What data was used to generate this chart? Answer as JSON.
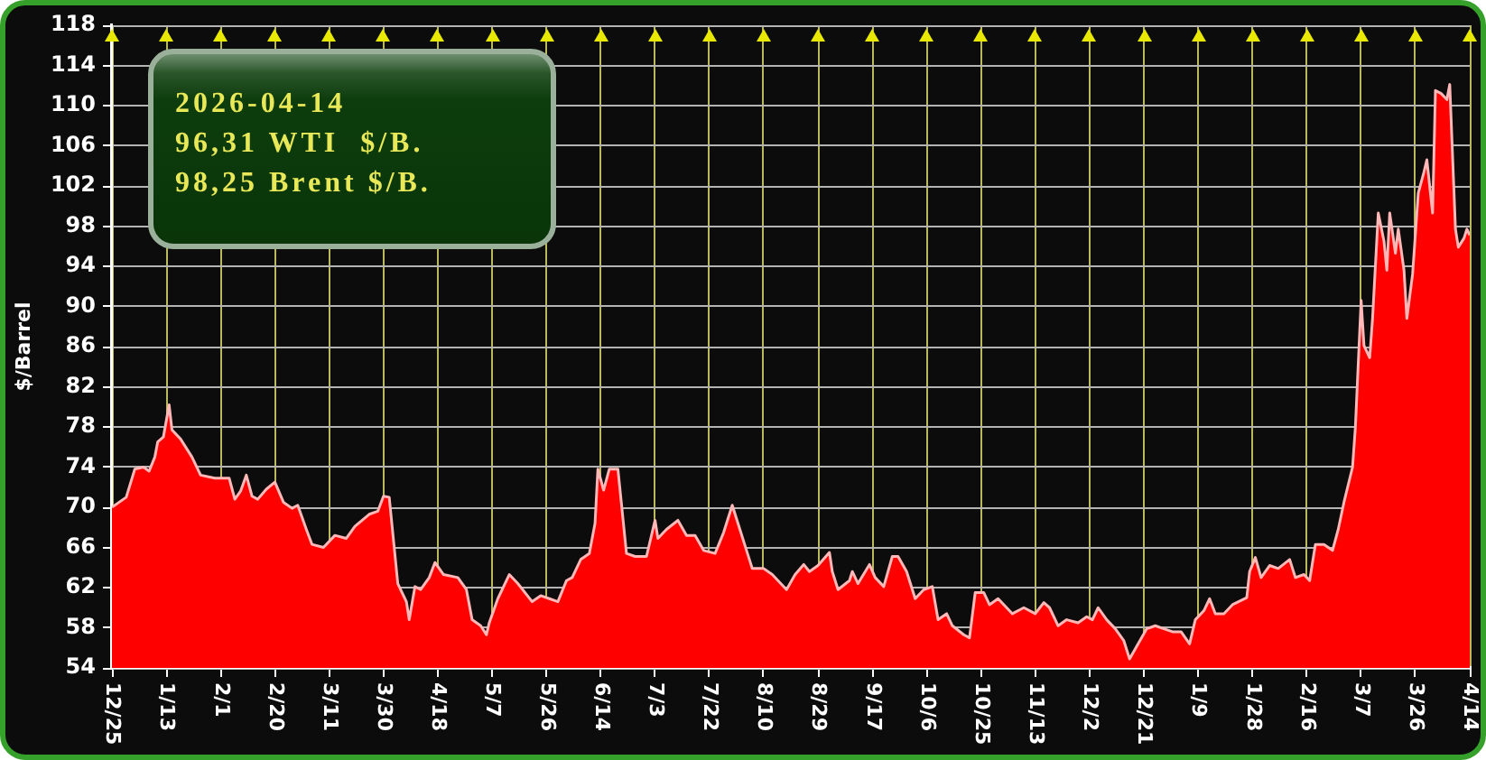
{
  "chart_data": {
    "type": "area",
    "ylabel": "$/Barrel",
    "annotations": [
      "2026-04-14",
      "96,31 WTI  $/B.",
      "98,25 Brent $/B."
    ],
    "x": [
      "2024-12-25",
      "2024-12-30",
      "2025-01-02",
      "2025-01-05",
      "2025-01-07",
      "2025-01-09",
      "2025-01-10",
      "2025-01-12",
      "2025-01-14",
      "2025-01-15",
      "2025-01-18",
      "2025-01-22",
      "2025-01-25",
      "2025-01-30",
      "2025-02-04",
      "2025-02-06",
      "2025-02-08",
      "2025-02-10",
      "2025-02-12",
      "2025-02-14",
      "2025-02-17",
      "2025-02-20",
      "2025-02-23",
      "2025-02-26",
      "2025-02-28",
      "2025-03-03",
      "2025-03-05",
      "2025-03-09",
      "2025-03-13",
      "2025-03-17",
      "2025-03-20",
      "2025-03-25",
      "2025-03-28",
      "2025-03-30",
      "2025-04-01",
      "2025-04-04",
      "2025-04-07",
      "2025-04-08",
      "2025-04-10",
      "2025-04-12",
      "2025-04-15",
      "2025-04-17",
      "2025-04-20",
      "2025-04-25",
      "2025-04-28",
      "2025-04-30",
      "2025-05-03",
      "2025-05-05",
      "2025-05-06",
      "2025-05-09",
      "2025-05-13",
      "2025-05-16",
      "2025-05-21",
      "2025-05-24",
      "2025-05-27",
      "2025-05-30",
      "2025-06-02",
      "2025-06-04",
      "2025-06-07",
      "2025-06-10",
      "2025-06-12",
      "2025-06-13",
      "2025-06-15",
      "2025-06-17",
      "2025-06-20",
      "2025-06-23",
      "2025-06-26",
      "2025-06-30",
      "2025-07-03",
      "2025-07-04",
      "2025-07-07",
      "2025-07-11",
      "2025-07-14",
      "2025-07-17",
      "2025-07-20",
      "2025-07-24",
      "2025-07-27",
      "2025-07-30",
      "2025-08-01",
      "2025-08-04",
      "2025-08-06",
      "2025-08-10",
      "2025-08-13",
      "2025-08-15",
      "2025-08-18",
      "2025-08-21",
      "2025-08-24",
      "2025-08-26",
      "2025-08-29",
      "2025-09-02",
      "2025-09-03",
      "2025-09-05",
      "2025-09-09",
      "2025-09-10",
      "2025-09-12",
      "2025-09-16",
      "2025-09-18",
      "2025-09-21",
      "2025-09-24",
      "2025-09-26",
      "2025-09-29",
      "2025-10-02",
      "2025-10-05",
      "2025-10-08",
      "2025-10-10",
      "2025-10-13",
      "2025-10-15",
      "2025-10-19",
      "2025-10-21",
      "2025-10-23",
      "2025-10-26",
      "2025-10-28",
      "2025-10-31",
      "2025-11-05",
      "2025-11-09",
      "2025-11-13",
      "2025-11-16",
      "2025-11-18",
      "2025-11-21",
      "2025-11-24",
      "2025-11-28",
      "2025-12-01",
      "2025-12-03",
      "2025-12-05",
      "2025-12-08",
      "2025-12-11",
      "2025-12-14",
      "2025-12-16",
      "2025-12-19",
      "2025-12-22",
      "2025-12-25",
      "2025-12-28",
      "2025-12-31",
      "2026-01-03",
      "2026-01-06",
      "2026-01-08",
      "2026-01-11",
      "2026-01-13",
      "2026-01-15",
      "2026-01-18",
      "2026-01-21",
      "2026-01-26",
      "2026-01-27",
      "2026-01-29",
      "2026-01-31",
      "2026-02-03",
      "2026-02-06",
      "2026-02-10",
      "2026-02-12",
      "2026-02-15",
      "2026-02-17",
      "2026-02-19",
      "2026-02-22",
      "2026-02-25",
      "2026-02-27",
      "2026-03-01",
      "2026-03-04",
      "2026-03-05",
      "2026-03-07",
      "2026-03-08",
      "2026-03-10",
      "2026-03-11",
      "2026-03-13",
      "2026-03-15",
      "2026-03-16",
      "2026-03-17",
      "2026-03-19",
      "2026-03-20",
      "2026-03-22",
      "2026-03-23",
      "2026-03-25",
      "2026-03-27",
      "2026-03-29",
      "2026-03-30",
      "2026-04-01",
      "2026-04-02",
      "2026-04-04",
      "2026-04-06",
      "2026-04-07",
      "2026-04-09",
      "2026-04-10",
      "2026-04-12",
      "2026-04-13",
      "2026-04-14"
    ],
    "values": [
      70,
      71,
      73.8,
      74,
      73.6,
      75,
      76.5,
      77,
      80.2,
      77.7,
      76.8,
      75,
      73.2,
      72.9,
      72.9,
      70.8,
      71.6,
      73.2,
      71.1,
      70.8,
      71.8,
      72.5,
      70.5,
      69.9,
      70.2,
      67.8,
      66.3,
      66,
      67.2,
      66.9,
      68.1,
      69.3,
      69.6,
      71.1,
      71,
      62.4,
      60.6,
      58.8,
      62.1,
      61.8,
      63,
      64.5,
      63.3,
      63,
      61.8,
      58.8,
      58.2,
      57.3,
      58.5,
      60.9,
      63.3,
      62.4,
      60.6,
      61.2,
      60.9,
      60.6,
      62.7,
      63,
      64.8,
      65.4,
      68.4,
      73.8,
      71.7,
      73.8,
      73.8,
      65.4,
      65.1,
      65.1,
      68.7,
      66.9,
      67.8,
      68.7,
      67.2,
      67.2,
      65.7,
      65.4,
      67.5,
      70.2,
      68.4,
      65.7,
      63.9,
      63.9,
      63.3,
      62.7,
      61.8,
      63.3,
      64.3,
      63.6,
      64.2,
      65.5,
      63.6,
      61.8,
      62.7,
      63.6,
      62.4,
      64.3,
      63,
      62.1,
      65.1,
      65.1,
      63.6,
      60.9,
      61.8,
      62.1,
      58.8,
      59.4,
      58.2,
      57.3,
      57,
      61.5,
      61.5,
      60.3,
      60.9,
      59.4,
      60,
      59.4,
      60.5,
      60,
      58.2,
      58.8,
      58.5,
      59.1,
      58.8,
      60,
      58.8,
      57.9,
      56.7,
      54.9,
      56.4,
      57.9,
      58.2,
      57.9,
      57.6,
      57.6,
      56.4,
      58.8,
      59.7,
      60.9,
      59.4,
      59.4,
      60.3,
      61,
      63.6,
      65,
      63,
      64.2,
      63.9,
      64.8,
      63,
      63.3,
      62.7,
      66.3,
      66.3,
      65.7,
      67.8,
      70.5,
      74,
      78,
      90.6,
      86.1,
      84.9,
      88.8,
      99.3,
      96.5,
      93.6,
      99.3,
      95.3,
      97.7,
      93.6,
      88.8,
      93.2,
      101.3,
      103.4,
      104.6,
      99.3,
      111.5,
      111.2,
      110.6,
      112.1,
      97.7,
      95.9,
      96.8,
      97.7,
      97.1
    ],
    "color": "#ff0000",
    "xlim": [
      "2024-12-25",
      "2026-04-14"
    ],
    "xticks": [
      {
        "value": "2024-12-25",
        "label": "12/25"
      },
      {
        "value": "2025-01-13",
        "label": "1/13"
      },
      {
        "value": "2025-02-01",
        "label": "2/1"
      },
      {
        "value": "2025-02-20",
        "label": "2/20"
      },
      {
        "value": "2025-03-11",
        "label": "3/11"
      },
      {
        "value": "2025-03-30",
        "label": "3/30"
      },
      {
        "value": "2025-04-18",
        "label": "4/18"
      },
      {
        "value": "2025-05-07",
        "label": "5/7"
      },
      {
        "value": "2025-05-26",
        "label": "5/26"
      },
      {
        "value": "2025-06-14",
        "label": "6/14"
      },
      {
        "value": "2025-07-03",
        "label": "7/3"
      },
      {
        "value": "2025-07-22",
        "label": "7/22"
      },
      {
        "value": "2025-08-10",
        "label": "8/10"
      },
      {
        "value": "2025-08-29",
        "label": "8/29"
      },
      {
        "value": "2025-09-17",
        "label": "9/17"
      },
      {
        "value": "2025-10-06",
        "label": "10/6"
      },
      {
        "value": "2025-10-25",
        "label": "10/25"
      },
      {
        "value": "2025-11-13",
        "label": "11/13"
      },
      {
        "value": "2025-12-02",
        "label": "12/2"
      },
      {
        "value": "2025-12-21",
        "label": "12/21"
      },
      {
        "value": "2026-01-09",
        "label": "1/9"
      },
      {
        "value": "2026-01-28",
        "label": "1/28"
      },
      {
        "value": "2026-02-16",
        "label": "2/16"
      },
      {
        "value": "2026-03-07",
        "label": "3/7"
      },
      {
        "value": "2026-03-26",
        "label": "3/26"
      },
      {
        "value": "2026-04-14",
        "label": "4/14"
      }
    ],
    "ylim": [
      54,
      118
    ],
    "yticks": [
      54,
      58,
      62,
      66,
      70,
      74,
      78,
      82,
      86,
      90,
      94,
      98,
      102,
      106,
      110,
      114,
      118
    ],
    "grid": true
  }
}
